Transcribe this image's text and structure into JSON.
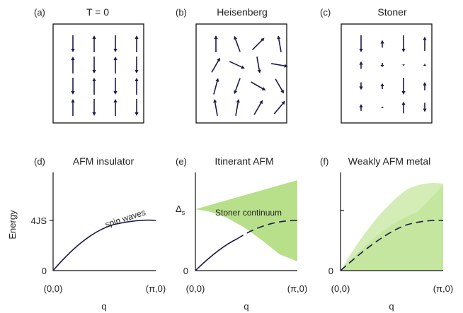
{
  "colors": {
    "arrow": "#1b1a4a",
    "shade": "#b8e08a",
    "shade_light": "#d4edb6",
    "axis": "#111111"
  },
  "top_panels": [
    {
      "label": "(a)",
      "title": "T = 0"
    },
    {
      "label": "(b)",
      "title": "Heisenberg"
    },
    {
      "label": "(c)",
      "title": "Stoner"
    }
  ],
  "bottom_panels": [
    {
      "label": "(d)",
      "title": "AFM insulator",
      "x_min": "(0,0)",
      "x_max": "(π,0)",
      "xlabel": "q"
    },
    {
      "label": "(e)",
      "title": "Itinerant AFM",
      "x_min": "(0,0)",
      "x_max": "(π,0)",
      "xlabel": "q"
    },
    {
      "label": "(f)",
      "title": "Weakly AFM metal",
      "x_min": "(0,0)",
      "x_max": "(π,0)",
      "xlabel": "q"
    }
  ],
  "ylabel": "Energy",
  "y_tick_top": "4JS",
  "y_tick_zero": "0",
  "spin_waves_label": "spin waves",
  "delta_label": "Δ",
  "delta_sub": "s",
  "continuum_label": "Stoner continuum",
  "arrows": {
    "a": [
      [
        0,
        0,
        -1.0
      ],
      [
        0,
        1,
        1.0
      ],
      [
        0,
        2,
        -1.0
      ],
      [
        0,
        3,
        1.0
      ],
      [
        1,
        0,
        1.0
      ],
      [
        1,
        1,
        -1.0
      ],
      [
        1,
        2,
        1.0
      ],
      [
        1,
        3,
        -1.0
      ],
      [
        2,
        0,
        -1.0
      ],
      [
        2,
        1,
        1.0
      ],
      [
        2,
        2,
        -1.0
      ],
      [
        2,
        3,
        1.0
      ],
      [
        3,
        0,
        1.0
      ],
      [
        3,
        1,
        -1.0
      ],
      [
        3,
        2,
        1.0
      ],
      [
        3,
        3,
        -1.0
      ]
    ],
    "b": [
      [
        0,
        0,
        90
      ],
      [
        0,
        1,
        60
      ],
      [
        0,
        2,
        75
      ],
      [
        0,
        3,
        100
      ],
      [
        1,
        0,
        110
      ],
      [
        1,
        1,
        -25
      ],
      [
        1,
        2,
        250
      ],
      [
        1,
        3,
        80
      ],
      [
        2,
        0,
        45
      ],
      [
        2,
        1,
        -80
      ],
      [
        2,
        2,
        -30
      ],
      [
        2,
        3,
        60
      ],
      [
        3,
        0,
        100
      ],
      [
        3,
        1,
        -10
      ],
      [
        3,
        2,
        -60
      ],
      [
        3,
        3,
        50
      ]
    ],
    "c": [
      [
        0,
        0,
        -1.0
      ],
      [
        0,
        1,
        0.45
      ],
      [
        0,
        2,
        -0.45
      ],
      [
        0,
        3,
        0.4
      ],
      [
        1,
        0,
        0.45
      ],
      [
        1,
        1,
        -0.25
      ],
      [
        1,
        2,
        0.35
      ],
      [
        1,
        3,
        -0.08
      ],
      [
        2,
        0,
        -1.0
      ],
      [
        2,
        1,
        0.08
      ],
      [
        2,
        2,
        -1.0
      ],
      [
        2,
        3,
        0.7
      ],
      [
        3,
        0,
        0.85
      ],
      [
        3,
        1,
        -0.12
      ],
      [
        3,
        2,
        0.5
      ],
      [
        3,
        3,
        -0.55
      ]
    ]
  }
}
